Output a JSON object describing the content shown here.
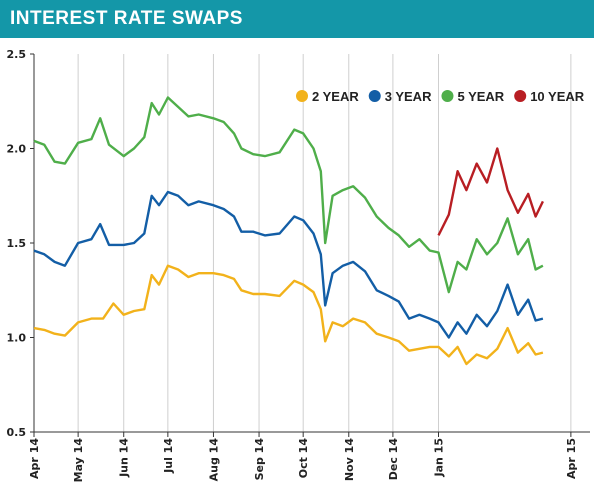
{
  "header": {
    "title": "INTEREST RATE SWAPS"
  },
  "chart_data": {
    "type": "line",
    "title": "INTEREST RATE SWAPS",
    "xlabel": "",
    "ylabel": "",
    "ylim": [
      0.5,
      2.5
    ],
    "yticks": [
      0.5,
      1.0,
      1.5,
      2.0,
      2.5
    ],
    "ytick_labels": [
      "0.5",
      "1.0",
      "1.5",
      "2.0",
      "2.5"
    ],
    "xlim": [
      "2014-04-01",
      "2015-04-14"
    ],
    "xticks": [
      {
        "date": "2014-04-01",
        "label": "Apr 14"
      },
      {
        "date": "2014-05-01",
        "label": "May 14"
      },
      {
        "date": "2014-06-01",
        "label": "Jun 14"
      },
      {
        "date": "2014-07-01",
        "label": "Jul 14"
      },
      {
        "date": "2014-08-01",
        "label": "Aug 14"
      },
      {
        "date": "2014-09-01",
        "label": "Sep 14"
      },
      {
        "date": "2014-10-01",
        "label": "Oct 14"
      },
      {
        "date": "2014-11-01",
        "label": "Nov 14"
      },
      {
        "date": "2014-12-01",
        "label": "Dec 14"
      },
      {
        "date": "2015-01-01",
        "label": "Jan 15"
      },
      {
        "date": "2015-04-01",
        "label": "Apr 15"
      }
    ],
    "grid": "vertical",
    "legend": "top-right",
    "series": [
      {
        "name": "2 YEAR",
        "color": "#f2b21b",
        "points": [
          [
            "2014-04-01",
            1.05
          ],
          [
            "2014-04-08",
            1.04
          ],
          [
            "2014-04-15",
            1.02
          ],
          [
            "2014-04-22",
            1.01
          ],
          [
            "2014-05-01",
            1.08
          ],
          [
            "2014-05-10",
            1.1
          ],
          [
            "2014-05-18",
            1.1
          ],
          [
            "2014-05-25",
            1.18
          ],
          [
            "2014-06-01",
            1.12
          ],
          [
            "2014-06-08",
            1.14
          ],
          [
            "2014-06-15",
            1.15
          ],
          [
            "2014-06-20",
            1.33
          ],
          [
            "2014-06-25",
            1.28
          ],
          [
            "2014-07-01",
            1.38
          ],
          [
            "2014-07-08",
            1.36
          ],
          [
            "2014-07-15",
            1.32
          ],
          [
            "2014-07-22",
            1.34
          ],
          [
            "2014-08-01",
            1.34
          ],
          [
            "2014-08-08",
            1.33
          ],
          [
            "2014-08-15",
            1.31
          ],
          [
            "2014-08-20",
            1.25
          ],
          [
            "2014-08-28",
            1.23
          ],
          [
            "2014-09-05",
            1.23
          ],
          [
            "2014-09-15",
            1.22
          ],
          [
            "2014-09-25",
            1.3
          ],
          [
            "2014-10-01",
            1.28
          ],
          [
            "2014-10-08",
            1.24
          ],
          [
            "2014-10-13",
            1.15
          ],
          [
            "2014-10-16",
            0.98
          ],
          [
            "2014-10-21",
            1.08
          ],
          [
            "2014-10-28",
            1.06
          ],
          [
            "2014-11-04",
            1.1
          ],
          [
            "2014-11-12",
            1.08
          ],
          [
            "2014-11-20",
            1.02
          ],
          [
            "2014-11-28",
            1.0
          ],
          [
            "2014-12-05",
            0.98
          ],
          [
            "2014-12-12",
            0.93
          ],
          [
            "2014-12-19",
            0.94
          ],
          [
            "2014-12-26",
            0.95
          ],
          [
            "2015-01-01",
            0.95
          ],
          [
            "2015-01-08",
            0.9
          ],
          [
            "2015-01-14",
            0.95
          ],
          [
            "2015-01-20",
            0.86
          ],
          [
            "2015-01-27",
            0.91
          ],
          [
            "2015-02-03",
            0.89
          ],
          [
            "2015-02-10",
            0.94
          ],
          [
            "2015-02-17",
            1.05
          ],
          [
            "2015-02-24",
            0.92
          ],
          [
            "2015-03-03",
            0.97
          ],
          [
            "2015-03-08",
            0.91
          ],
          [
            "2015-03-13",
            0.92
          ]
        ]
      },
      {
        "name": "3 YEAR",
        "color": "#135ea6",
        "points": [
          [
            "2014-04-01",
            1.46
          ],
          [
            "2014-04-08",
            1.44
          ],
          [
            "2014-04-15",
            1.4
          ],
          [
            "2014-04-22",
            1.38
          ],
          [
            "2014-05-01",
            1.5
          ],
          [
            "2014-05-10",
            1.52
          ],
          [
            "2014-05-16",
            1.6
          ],
          [
            "2014-05-22",
            1.49
          ],
          [
            "2014-06-01",
            1.49
          ],
          [
            "2014-06-08",
            1.5
          ],
          [
            "2014-06-15",
            1.55
          ],
          [
            "2014-06-20",
            1.75
          ],
          [
            "2014-06-25",
            1.7
          ],
          [
            "2014-07-01",
            1.77
          ],
          [
            "2014-07-08",
            1.75
          ],
          [
            "2014-07-15",
            1.7
          ],
          [
            "2014-07-22",
            1.72
          ],
          [
            "2014-08-01",
            1.7
          ],
          [
            "2014-08-08",
            1.68
          ],
          [
            "2014-08-15",
            1.64
          ],
          [
            "2014-08-20",
            1.56
          ],
          [
            "2014-08-28",
            1.56
          ],
          [
            "2014-09-05",
            1.54
          ],
          [
            "2014-09-15",
            1.55
          ],
          [
            "2014-09-25",
            1.64
          ],
          [
            "2014-10-01",
            1.62
          ],
          [
            "2014-10-08",
            1.55
          ],
          [
            "2014-10-13",
            1.44
          ],
          [
            "2014-10-16",
            1.17
          ],
          [
            "2014-10-21",
            1.34
          ],
          [
            "2014-10-28",
            1.38
          ],
          [
            "2014-11-04",
            1.4
          ],
          [
            "2014-11-12",
            1.35
          ],
          [
            "2014-11-20",
            1.25
          ],
          [
            "2014-11-28",
            1.22
          ],
          [
            "2014-12-05",
            1.19
          ],
          [
            "2014-12-12",
            1.1
          ],
          [
            "2014-12-19",
            1.12
          ],
          [
            "2014-12-26",
            1.1
          ],
          [
            "2015-01-01",
            1.08
          ],
          [
            "2015-01-08",
            1.0
          ],
          [
            "2015-01-14",
            1.08
          ],
          [
            "2015-01-20",
            1.02
          ],
          [
            "2015-01-27",
            1.12
          ],
          [
            "2015-02-03",
            1.06
          ],
          [
            "2015-02-10",
            1.14
          ],
          [
            "2015-02-17",
            1.28
          ],
          [
            "2015-02-24",
            1.12
          ],
          [
            "2015-03-03",
            1.2
          ],
          [
            "2015-03-08",
            1.09
          ],
          [
            "2015-03-13",
            1.1
          ]
        ]
      },
      {
        "name": "5 YEAR",
        "color": "#4fae4a",
        "points": [
          [
            "2014-04-01",
            2.04
          ],
          [
            "2014-04-08",
            2.02
          ],
          [
            "2014-04-15",
            1.93
          ],
          [
            "2014-04-22",
            1.92
          ],
          [
            "2014-05-01",
            2.03
          ],
          [
            "2014-05-10",
            2.05
          ],
          [
            "2014-05-16",
            2.16
          ],
          [
            "2014-05-22",
            2.02
          ],
          [
            "2014-06-01",
            1.96
          ],
          [
            "2014-06-08",
            2.0
          ],
          [
            "2014-06-15",
            2.06
          ],
          [
            "2014-06-20",
            2.24
          ],
          [
            "2014-06-25",
            2.18
          ],
          [
            "2014-07-01",
            2.27
          ],
          [
            "2014-07-08",
            2.22
          ],
          [
            "2014-07-15",
            2.17
          ],
          [
            "2014-07-22",
            2.18
          ],
          [
            "2014-08-01",
            2.16
          ],
          [
            "2014-08-08",
            2.14
          ],
          [
            "2014-08-15",
            2.08
          ],
          [
            "2014-08-20",
            2.0
          ],
          [
            "2014-08-28",
            1.97
          ],
          [
            "2014-09-05",
            1.96
          ],
          [
            "2014-09-15",
            1.98
          ],
          [
            "2014-09-25",
            2.1
          ],
          [
            "2014-10-01",
            2.08
          ],
          [
            "2014-10-08",
            2.0
          ],
          [
            "2014-10-13",
            1.88
          ],
          [
            "2014-10-16",
            1.5
          ],
          [
            "2014-10-21",
            1.75
          ],
          [
            "2014-10-28",
            1.78
          ],
          [
            "2014-11-04",
            1.8
          ],
          [
            "2014-11-12",
            1.74
          ],
          [
            "2014-11-20",
            1.64
          ],
          [
            "2014-11-28",
            1.58
          ],
          [
            "2014-12-05",
            1.54
          ],
          [
            "2014-12-12",
            1.48
          ],
          [
            "2014-12-19",
            1.52
          ],
          [
            "2014-12-26",
            1.46
          ],
          [
            "2015-01-01",
            1.45
          ],
          [
            "2015-01-08",
            1.24
          ],
          [
            "2015-01-14",
            1.4
          ],
          [
            "2015-01-20",
            1.36
          ],
          [
            "2015-01-27",
            1.52
          ],
          [
            "2015-02-03",
            1.44
          ],
          [
            "2015-02-10",
            1.5
          ],
          [
            "2015-02-17",
            1.63
          ],
          [
            "2015-02-24",
            1.44
          ],
          [
            "2015-03-03",
            1.52
          ],
          [
            "2015-03-08",
            1.36
          ],
          [
            "2015-03-13",
            1.38
          ]
        ]
      },
      {
        "name": "10 YEAR",
        "color": "#b81e23",
        "points": [
          [
            "2015-01-01",
            1.54
          ],
          [
            "2015-01-08",
            1.65
          ],
          [
            "2015-01-14",
            1.88
          ],
          [
            "2015-01-20",
            1.78
          ],
          [
            "2015-01-27",
            1.92
          ],
          [
            "2015-02-03",
            1.82
          ],
          [
            "2015-02-10",
            2.0
          ],
          [
            "2015-02-17",
            1.78
          ],
          [
            "2015-02-24",
            1.66
          ],
          [
            "2015-03-03",
            1.76
          ],
          [
            "2015-03-08",
            1.64
          ],
          [
            "2015-03-13",
            1.72
          ]
        ]
      }
    ]
  }
}
